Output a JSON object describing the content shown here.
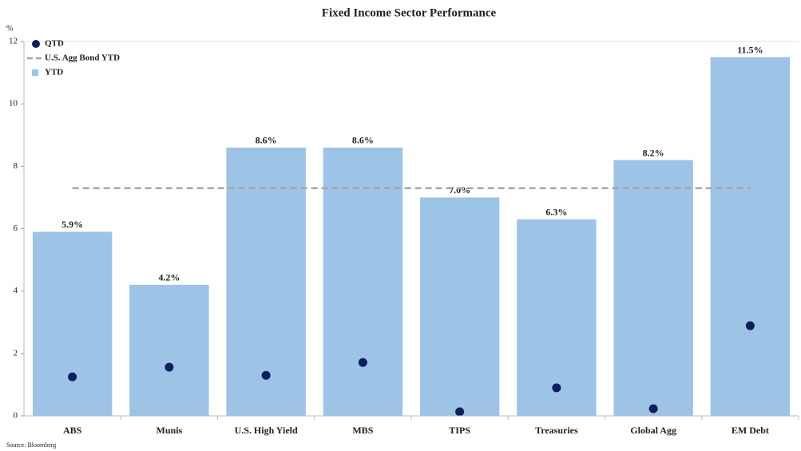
{
  "chart_data": {
    "type": "bar",
    "title": "Fixed Income Sector Performance",
    "y_unit": "%",
    "source": "Source: Bloomberg",
    "categories": [
      "ABS",
      "Munis",
      "U.S. High Yield",
      "MBS",
      "TIPS",
      "Treasuries",
      "Global Agg",
      "EM Debt"
    ],
    "series": [
      {
        "name": "QTD",
        "type": "scatter",
        "color": "#0b1f5c",
        "values": [
          1.25,
          1.56,
          1.3,
          1.71,
          0.13,
          0.9,
          0.23,
          2.89
        ]
      },
      {
        "name": "U.S. Agg Bond YTD",
        "type": "hline",
        "color": "#a6a6a6",
        "value": 7.3
      },
      {
        "name": "YTD",
        "type": "bar",
        "color": "#9dc3e6",
        "values": [
          5.9,
          4.2,
          8.6,
          8.6,
          7.0,
          6.3,
          8.2,
          11.5
        ],
        "value_labels": [
          "5.9%",
          "4.2%",
          "8.6%",
          "8.6%",
          "7.0%",
          "6.3%",
          "8.2%",
          "11.5%"
        ]
      }
    ],
    "ylim": [
      0,
      12
    ],
    "yticks": [
      0,
      2,
      4,
      6,
      8,
      10,
      12
    ],
    "legend": "upper left"
  }
}
